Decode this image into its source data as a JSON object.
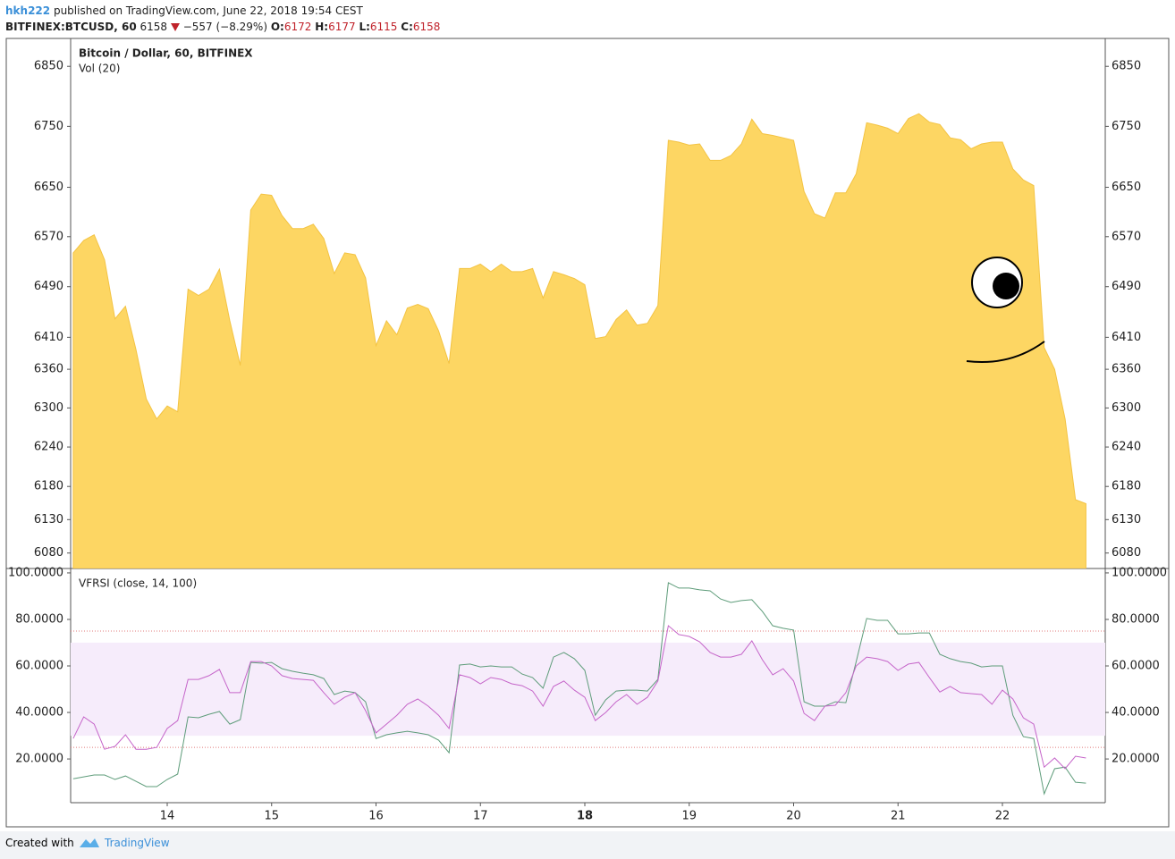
{
  "header": {
    "user": "hkh222",
    "published": "published on TradingView.com, June 22, 2018 19:54 CEST",
    "symbol": "BITFINEX:BTCUSD, 60",
    "last": "6158",
    "change": "−557 (−8.29%)",
    "ohlc": [
      {
        "label": "O:",
        "value": "6172"
      },
      {
        "label": "H:",
        "value": "6177"
      },
      {
        "label": "L:",
        "value": "6115"
      },
      {
        "label": "C:",
        "value": "6158"
      }
    ]
  },
  "footer": {
    "text": "Created with",
    "brand": "TradingView"
  },
  "chart_data": [
    {
      "type": "area",
      "title": "Bitcoin / Dollar, 60, BITFINEX",
      "annotations": [
        "Vol (20)"
      ],
      "color": "#fdd663",
      "line_color": "#f3c343",
      "log_scale": true,
      "grid": false,
      "xlim": [
        13.075,
        22.985
      ],
      "ylim": [
        6057,
        6897
      ],
      "yticks": [
        6850,
        6750,
        6650,
        6570,
        6490,
        6410,
        6360,
        6300,
        6240,
        6180,
        6130,
        6080
      ],
      "x": [
        13.1,
        13.2,
        13.3,
        13.4,
        13.5,
        13.6,
        13.7,
        13.8,
        13.9,
        14.0,
        14.1,
        14.2,
        14.3,
        14.4,
        14.5,
        14.6,
        14.7,
        14.8,
        14.9,
        15.0,
        15.1,
        15.2,
        15.3,
        15.4,
        15.5,
        15.6,
        15.7,
        15.8,
        15.9,
        16.0,
        16.1,
        16.2,
        16.3,
        16.4,
        16.5,
        16.6,
        16.7,
        16.8,
        16.9,
        17.0,
        17.1,
        17.2,
        17.3,
        17.4,
        17.5,
        17.6,
        17.7,
        17.8,
        17.9,
        18.0,
        18.1,
        18.2,
        18.3,
        18.4,
        18.5,
        18.6,
        18.7,
        18.8,
        18.9,
        19.0,
        19.1,
        19.2,
        19.3,
        19.4,
        19.5,
        19.6,
        19.7,
        19.8,
        19.9,
        20.0,
        20.1,
        20.2,
        20.3,
        20.4,
        20.5,
        20.6,
        20.7,
        20.8,
        20.9,
        21.0,
        21.1,
        21.2,
        21.3,
        21.4,
        21.5,
        21.6,
        21.7,
        21.8,
        21.9,
        22.0,
        22.1,
        22.2,
        22.3,
        22.4,
        22.5,
        22.6,
        22.7,
        22.8
      ],
      "values": [
        6544,
        6564,
        6573,
        6533,
        6439,
        6459,
        6391,
        6314,
        6283,
        6303,
        6294,
        6486,
        6476,
        6486,
        6518,
        6436,
        6366,
        6613,
        6639,
        6637,
        6604,
        6583,
        6583,
        6590,
        6567,
        6511,
        6544,
        6541,
        6504,
        6397,
        6436,
        6414,
        6456,
        6462,
        6455,
        6420,
        6369,
        6519,
        6519,
        6526,
        6514,
        6526,
        6514,
        6514,
        6519,
        6472,
        6514,
        6509,
        6503,
        6493,
        6408,
        6411,
        6438,
        6453,
        6429,
        6432,
        6460,
        6727,
        6724,
        6719,
        6721,
        6694,
        6694,
        6702,
        6721,
        6762,
        6738,
        6735,
        6731,
        6727,
        6643,
        6607,
        6600,
        6641,
        6641,
        6672,
        6756,
        6752,
        6747,
        6738,
        6763,
        6771,
        6757,
        6753,
        6731,
        6728,
        6713,
        6721,
        6724,
        6724,
        6680,
        6662,
        6653,
        6394,
        6360,
        6283,
        6160,
        6154
      ]
    },
    {
      "type": "line",
      "title": "VFRSI (close, 14, 100)",
      "grid": false,
      "xlim": [
        13.075,
        22.985
      ],
      "ylim": [
        1.2,
        101.9
      ],
      "xticks": [
        14,
        15,
        16,
        17,
        18,
        19,
        20,
        21,
        22
      ],
      "emphasized_xtick": 18,
      "yticks": [
        {
          "value": 100,
          "label": "100.0000"
        },
        {
          "value": 80,
          "label": "80.0000"
        },
        {
          "value": 60,
          "label": "60.0000"
        },
        {
          "value": 40,
          "label": "40.0000"
        },
        {
          "value": 20,
          "label": "20.0000"
        }
      ],
      "band": [
        30,
        70
      ],
      "band_color": "#f6ecfb",
      "hlines": [
        75,
        25
      ],
      "hline_color": "#e07b7b",
      "x": [
        13.1,
        13.2,
        13.3,
        13.4,
        13.5,
        13.6,
        13.7,
        13.8,
        13.9,
        14.0,
        14.1,
        14.2,
        14.3,
        14.4,
        14.5,
        14.6,
        14.7,
        14.8,
        14.9,
        15.0,
        15.1,
        15.2,
        15.3,
        15.4,
        15.5,
        15.6,
        15.7,
        15.8,
        15.9,
        16.0,
        16.1,
        16.2,
        16.3,
        16.4,
        16.5,
        16.6,
        16.7,
        16.8,
        16.9,
        17.0,
        17.1,
        17.2,
        17.3,
        17.4,
        17.5,
        17.6,
        17.7,
        17.8,
        17.9,
        18.0,
        18.1,
        18.2,
        18.3,
        18.4,
        18.5,
        18.6,
        18.7,
        18.8,
        18.9,
        19.0,
        19.1,
        19.2,
        19.3,
        19.4,
        19.5,
        19.6,
        19.7,
        19.8,
        19.9,
        20.0,
        20.1,
        20.2,
        20.3,
        20.4,
        20.5,
        20.6,
        20.7,
        20.8,
        20.9,
        21.0,
        21.1,
        21.2,
        21.3,
        21.4,
        21.5,
        21.6,
        21.7,
        21.8,
        21.9,
        22.0,
        22.1,
        22.2,
        22.3,
        22.4,
        22.5,
        22.6,
        22.7,
        22.8
      ],
      "series": [
        {
          "color": "#5e9c7a",
          "values": [
            11.5,
            12.3,
            13.1,
            13.1,
            11.2,
            12.7,
            10.4,
            8.1,
            8.1,
            11.2,
            13.5,
            38.1,
            37.7,
            39.2,
            40.4,
            35.0,
            36.9,
            61.5,
            61.2,
            61.5,
            58.8,
            57.7,
            56.9,
            56.2,
            54.6,
            47.7,
            49.2,
            48.5,
            44.6,
            28.8,
            30.4,
            31.2,
            31.9,
            31.2,
            30.4,
            28.1,
            22.7,
            60.4,
            60.8,
            59.6,
            60.0,
            59.6,
            59.6,
            56.5,
            55.0,
            50.4,
            63.8,
            65.8,
            63.1,
            58.1,
            38.8,
            45.4,
            49.2,
            49.6,
            49.6,
            49.2,
            54.2,
            95.8,
            93.5,
            93.5,
            92.7,
            92.3,
            88.8,
            87.3,
            88.1,
            88.5,
            83.5,
            77.3,
            76.2,
            75.4,
            44.6,
            42.7,
            42.7,
            44.6,
            44.2,
            61.9,
            80.4,
            79.6,
            79.6,
            73.8,
            73.8,
            74.2,
            74.2,
            65.0,
            63.1,
            61.9,
            61.2,
            59.6,
            60.0,
            60.0,
            38.8,
            29.6,
            28.8,
            5.0,
            15.8,
            16.5,
            10.0,
            9.6
          ]
        },
        {
          "color": "#c565c9",
          "values": [
            28.8,
            38.1,
            35.0,
            24.2,
            25.4,
            30.4,
            24.2,
            24.2,
            25.0,
            33.1,
            36.5,
            54.2,
            54.2,
            55.8,
            58.5,
            48.5,
            48.5,
            61.9,
            61.9,
            60.0,
            55.8,
            54.6,
            54.2,
            53.8,
            48.5,
            43.5,
            46.5,
            48.5,
            40.8,
            31.2,
            35.0,
            38.8,
            43.5,
            45.8,
            42.7,
            38.8,
            33.1,
            56.2,
            55.0,
            52.3,
            55.0,
            54.2,
            52.3,
            51.5,
            49.2,
            42.7,
            51.2,
            53.5,
            49.6,
            46.5,
            36.5,
            40.0,
            44.6,
            47.7,
            43.5,
            46.5,
            53.5,
            77.3,
            73.5,
            72.7,
            70.4,
            65.8,
            63.8,
            63.8,
            65.0,
            70.8,
            62.7,
            56.2,
            58.8,
            53.5,
            39.6,
            36.5,
            42.7,
            43.1,
            48.5,
            60.0,
            63.8,
            63.1,
            61.9,
            58.1,
            60.8,
            61.5,
            55.0,
            48.8,
            51.2,
            48.5,
            48.1,
            47.7,
            43.5,
            49.6,
            45.8,
            37.7,
            35.0,
            16.5,
            20.4,
            15.8,
            21.2,
            20.4
          ]
        }
      ]
    }
  ]
}
